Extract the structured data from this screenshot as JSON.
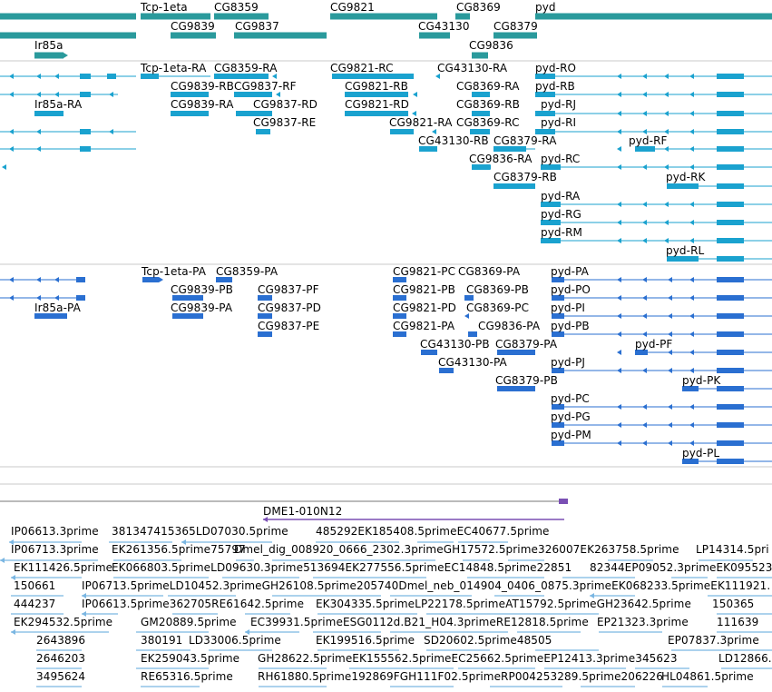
{
  "colors": {
    "gene": "#2a9a9c",
    "transcript": "#1aa2cf",
    "cds": "#2a6fd1",
    "clone": "#7a4fb4",
    "est": "#7ab6e2",
    "divider": "#c8c8c8"
  },
  "tracks": {
    "genes": {
      "labels": [
        "Tcp-1eta",
        "CG8359",
        "CG9821",
        "CG8369",
        "pyd",
        "CG9839",
        "CG9837",
        "CG43130",
        "CG8379",
        "Ir85a",
        "CG9836"
      ]
    },
    "transcripts": {
      "labels": [
        "Tcp-1eta-RA",
        "CG8359-RA",
        "CG9821-RC",
        "CG43130-RA",
        "pyd-RO",
        "CG9839-RB",
        "CG9837-RF",
        "CG9821-RB",
        "CG8369-RA",
        "pyd-RB",
        "Ir85a-RA",
        "CG9839-RA",
        "CG9837-RD",
        "CG9821-RD",
        "CG8369-RB",
        "pyd-RJ",
        "CG9837-RE",
        "CG9821-RA",
        "CG8369-RC",
        "pyd-RI",
        "CG43130-RB",
        "CG8379-RA",
        "pyd-RF",
        "CG9836-RA",
        "pyd-RC",
        "CG8379-RB",
        "pyd-RK",
        "pyd-RA",
        "pyd-RG",
        "pyd-RM",
        "pyd-RL"
      ]
    },
    "proteins": {
      "labels": [
        "Tcp-1eta-PA",
        "CG8359-PA",
        "CG9821-PC",
        "CG8369-PA",
        "pyd-PA",
        "CG9839-PB",
        "CG9837-PF",
        "CG9821-PB",
        "CG8369-PB",
        "pyd-PO",
        "Ir85a-PA",
        "CG9839-PA",
        "CG9837-PD",
        "CG9821-PD",
        "CG8369-PC",
        "pyd-PI",
        "CG9837-PE",
        "CG9821-PA",
        "CG9836-PA",
        "pyd-PB",
        "CG43130-PB",
        "CG8379-PA",
        "pyd-PF",
        "CG43130-PA",
        "pyd-PJ",
        "CG8379-PB",
        "pyd-PK",
        "pyd-PC",
        "pyd-PG",
        "pyd-PM",
        "pyd-PL"
      ]
    },
    "clones": {
      "labels": [
        "DME1-010N12"
      ]
    },
    "ests": {
      "labels": [
        "IP06613.3prime",
        "381347415365LD07030.5prime",
        "485292EK185408.5primeEC40677.5prime",
        "IP06713.3prime",
        "EK261356.5prime75797",
        "Dmel_dig_008920_0666_2302.3primeGH17572.5prime326007EK263758.5prime",
        "LP14314.5pri",
        "EK111426.5prime",
        "EK066803.5primeLD09630.3prime513694EK277556.5primeEC14848.5prime22851",
        "82344EP09052.3primeEK095523",
        "150661",
        "IP06713.5primeLD10452.3primeGH26108.5prime205740Dmel_neb_014904_0406_0875.3primeEK068233.5primeEK111921.",
        "444237",
        "IP06613.5prime362705RE61642.5prime",
        "EK304335.5primeLP22178.5primeAT15792.5primeGH23642.5prime",
        "150365",
        "EK294532.5prime",
        "GM20889.5prime",
        "EC39931.5primeESG0112d.B21_H04.3primeRE12818.5prime",
        "EP21323.3prime",
        "111639",
        "2643896",
        "380191",
        "LD33006.5prime",
        "EK199516.5prime",
        "SD20602.5prime48505",
        "EP07837.3prime",
        "2646203",
        "EK259043.5prime",
        "GH28622.5primeEK155562.5primeEC25662.5primeEP12413.3prime345623",
        "LD12866.",
        "3495624",
        "RE65316.5prime",
        "RH61880.5prime192869FGH111F02.5primeRP004253289.5prime206226",
        "HL04861.5prime"
      ]
    }
  }
}
